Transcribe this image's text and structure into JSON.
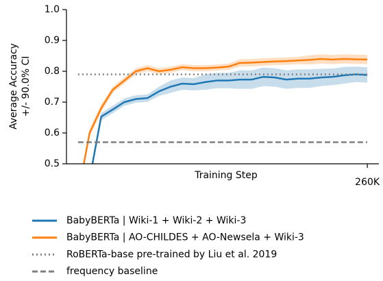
{
  "chart_data": {
    "type": "line",
    "xlabel": "Training Step",
    "ylabel": [
      "Average Accuracy",
      "+/- 90.0% CI"
    ],
    "xlim": [
      0,
      270000
    ],
    "ylim": [
      0.5,
      1.0
    ],
    "xticks": [
      {
        "value": 260000,
        "label": "260K"
      }
    ],
    "yticks": [
      0.5,
      0.6,
      0.7,
      0.8,
      0.9,
      {
        "value": 1.0,
        "label": "1.0"
      }
    ],
    "x": [
      10000,
      20000,
      30000,
      40000,
      50000,
      60000,
      70000,
      80000,
      90000,
      100000,
      110000,
      120000,
      130000,
      140000,
      150000,
      160000,
      170000,
      180000,
      190000,
      200000,
      210000,
      220000,
      230000,
      240000,
      250000,
      260000
    ],
    "series": [
      {
        "name": "BabyBERTa | Wiki-1 + Wiki-2 + Wiki-3",
        "color": "#1f77b4",
        "values": [
          null,
          0.45,
          0.653,
          0.676,
          0.7,
          0.71,
          0.713,
          0.735,
          0.75,
          0.76,
          0.758,
          0.765,
          0.77,
          0.77,
          0.773,
          0.773,
          0.782,
          0.78,
          0.773,
          0.776,
          0.776,
          0.78,
          0.782,
          0.787,
          0.79,
          0.788
        ],
        "errors": [
          null,
          0.015,
          0.012,
          0.012,
          0.012,
          0.012,
          0.012,
          0.015,
          0.02,
          0.02,
          0.02,
          0.025,
          0.025,
          0.025,
          0.03,
          0.03,
          0.03,
          0.03,
          0.03,
          0.03,
          0.03,
          0.028,
          0.027,
          0.027,
          0.025,
          0.025
        ]
      },
      {
        "name": "BabyBERTa | AO-CHILDES + AO-Newsela + Wiki-3",
        "color": "#ff7f0e",
        "values": [
          0.4,
          0.6,
          0.68,
          0.74,
          0.77,
          0.8,
          0.81,
          0.8,
          0.805,
          0.813,
          0.81,
          0.81,
          0.812,
          0.815,
          0.827,
          0.828,
          0.83,
          0.832,
          0.833,
          0.835,
          0.837,
          0.84,
          0.838,
          0.84,
          0.839,
          0.838
        ],
        "errors": [
          0.01,
          0.012,
          0.012,
          0.01,
          0.01,
          0.01,
          0.01,
          0.01,
          0.01,
          0.01,
          0.01,
          0.01,
          0.01,
          0.01,
          0.012,
          0.012,
          0.012,
          0.012,
          0.012,
          0.012,
          0.015,
          0.015,
          0.015,
          0.015,
          0.015,
          0.015
        ]
      }
    ],
    "reference_lines": [
      {
        "name": "RoBERTa-base pre-trained by Liu et al. 2019",
        "color": "#808080",
        "value": 0.79,
        "style": "dotted"
      },
      {
        "name": "frequency baseline",
        "color": "#808080",
        "value": 0.57,
        "style": "dashed"
      }
    ]
  }
}
